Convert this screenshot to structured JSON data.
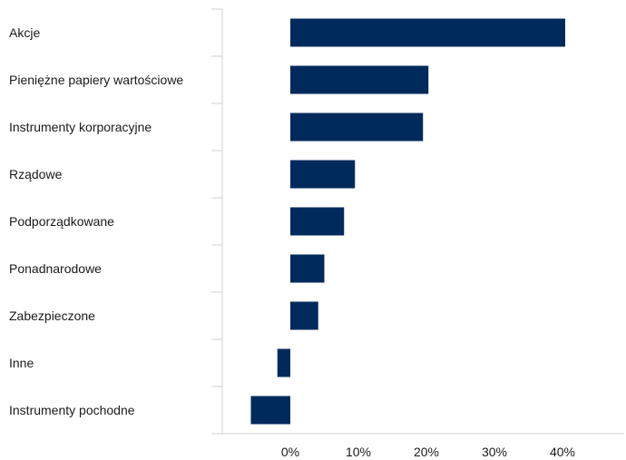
{
  "chart_data": {
    "type": "bar",
    "orientation": "horizontal",
    "categories": [
      "Akcje",
      "Pieniężne papiery wartościowe",
      "Instrumenty korporacyjne",
      "Rządowe",
      "Podporządkowane",
      "Ponadnarodowe",
      "Zabezpieczone",
      "Inne",
      "Instrumenty pochodne"
    ],
    "series": [
      {
        "values": [
          40.4,
          20.3,
          19.5,
          9.5,
          7.9,
          5.0,
          4.1,
          -1.9,
          -5.8
        ]
      }
    ],
    "title": "",
    "xlabel": "",
    "ylabel": "",
    "xlim": [
      -10,
      50
    ],
    "ticks": [
      0,
      10,
      20,
      30,
      40
    ],
    "tick_labels": [
      "0%",
      "10%",
      "20%",
      "30%",
      "40%"
    ],
    "grid": false,
    "legend": "none",
    "bar_color": "#002a5c",
    "axis_color": "#d0d0d0"
  }
}
